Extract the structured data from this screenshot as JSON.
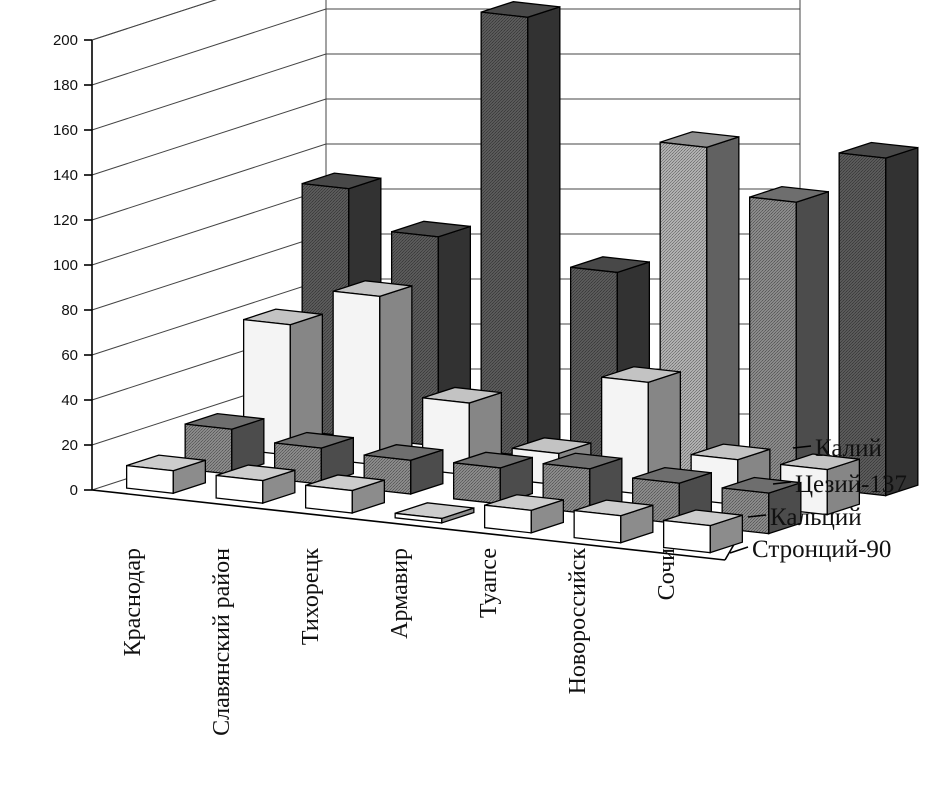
{
  "chart_data": {
    "type": "bar",
    "variant": "3d-column",
    "categories": [
      "Краснодар",
      "Славянский район",
      "Тихорецк",
      "Армавир",
      "Туапсе",
      "Новороссийск",
      "Сочи"
    ],
    "series": [
      {
        "name": "Стронций-90",
        "values": [
          10,
          10,
          10,
          2,
          10,
          12,
          12
        ],
        "color": "#ffffff"
      },
      {
        "name": "Кальций",
        "values": [
          20,
          16,
          15,
          16,
          20,
          18,
          18
        ],
        "color": "#8a8a8a"
      },
      {
        "name": "Цезий-137",
        "values": [
          58,
          75,
          32,
          14,
          50,
          20,
          20
        ],
        "color": "#f4f4f4"
      },
      {
        "name": "Калий",
        "values": [
          110,
          93,
          195,
          86,
          146,
          126,
          150
        ],
        "color": "#606060"
      }
    ],
    "series_colors": {
      "Стронций-90": "#ffffff",
      "Кальций": "#8a8a8a",
      "Цезий-137": "#f4f4f4",
      "Калий": "#5a5a5a"
    },
    "special_colors": {
      "Новороссийск|Калий": "#8a8a8a",
      "Туапсе|Калий": "#b0b0b0"
    },
    "y_ticks": [
      "0",
      "20",
      "40",
      "60",
      "80",
      "100",
      "120",
      "140",
      "160",
      "180",
      "200"
    ],
    "ylim": [
      0,
      200
    ],
    "grid": true,
    "legend": "series labels along the depth axis, right side",
    "title": "",
    "xlabel": "",
    "ylabel": ""
  }
}
